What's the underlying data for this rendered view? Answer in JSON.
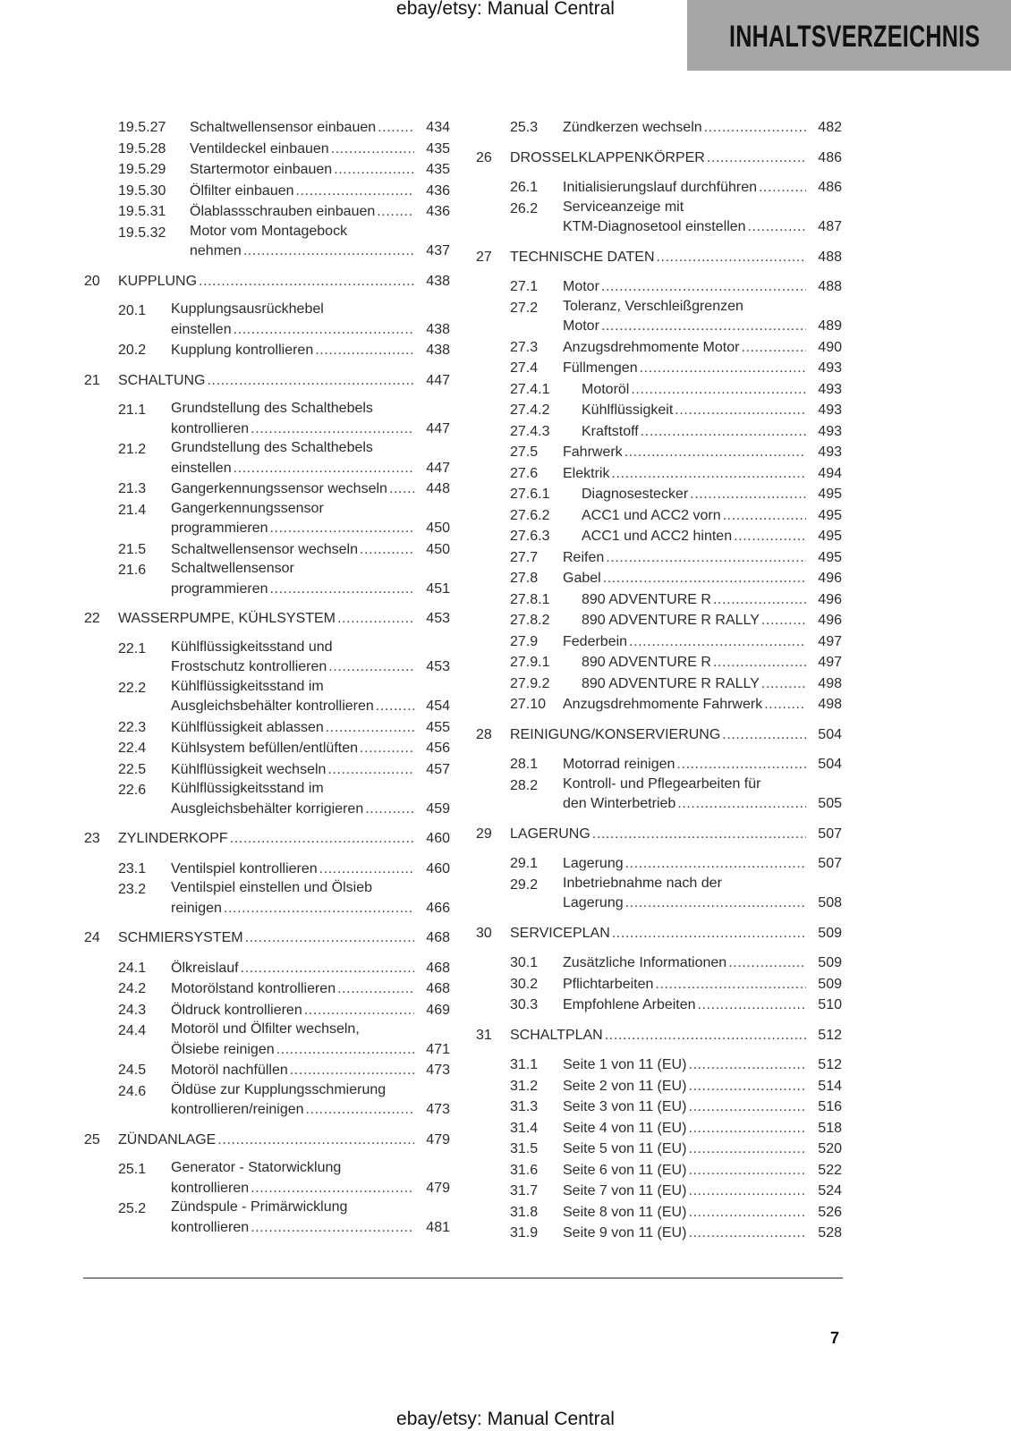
{
  "watermark_top": "ebay/etsy: Manual Central",
  "watermark_bottom": "ebay/etsy: Manual Central",
  "header": {
    "title": "INHALTSVERZEICHNIS",
    "box_color": "#a6a6a6"
  },
  "page_number": "7",
  "columns": [
    [
      {
        "num": "19.5.27",
        "level": 3,
        "lines": [
          "Schaltwellensensor einbauen"
        ],
        "page": "434"
      },
      {
        "num": "19.5.28",
        "level": 3,
        "lines": [
          "Ventildeckel einbauen"
        ],
        "page": "435"
      },
      {
        "num": "19.5.29",
        "level": 3,
        "lines": [
          "Startermotor einbauen"
        ],
        "page": "435"
      },
      {
        "num": "19.5.30",
        "level": 3,
        "lines": [
          "Ölfilter einbauen"
        ],
        "page": "436"
      },
      {
        "num": "19.5.31",
        "level": 3,
        "lines": [
          "Ölablassschrauben einbauen"
        ],
        "page": "436"
      },
      {
        "num": "19.5.32",
        "level": 3,
        "lines": [
          "Motor vom Montagebock",
          "nehmen"
        ],
        "page": "437"
      },
      {
        "num": "20",
        "level": 1,
        "lines": [
          "KUPPLUNG"
        ],
        "page": "438"
      },
      {
        "num": "20.1",
        "level": 2,
        "lines": [
          "Kupplungsausrückhebel",
          "einstellen"
        ],
        "page": "438"
      },
      {
        "num": "20.2",
        "level": 2,
        "lines": [
          "Kupplung kontrollieren"
        ],
        "page": "438"
      },
      {
        "num": "21",
        "level": 1,
        "lines": [
          "SCHALTUNG"
        ],
        "page": "447"
      },
      {
        "num": "21.1",
        "level": 2,
        "lines": [
          "Grundstellung des Schalthebels",
          "kontrollieren"
        ],
        "page": "447"
      },
      {
        "num": "21.2",
        "level": 2,
        "lines": [
          "Grundstellung des Schalthebels",
          "einstellen"
        ],
        "page": "447"
      },
      {
        "num": "21.3",
        "level": 2,
        "lines": [
          "Gangerkennungssensor wechseln"
        ],
        "page": "448"
      },
      {
        "num": "21.4",
        "level": 2,
        "lines": [
          "Gangerkennungssensor",
          "programmieren"
        ],
        "page": "450"
      },
      {
        "num": "21.5",
        "level": 2,
        "lines": [
          "Schaltwellensensor wechseln"
        ],
        "page": "450"
      },
      {
        "num": "21.6",
        "level": 2,
        "lines": [
          "Schaltwellensensor",
          "programmieren"
        ],
        "page": "451"
      },
      {
        "num": "22",
        "level": 1,
        "lines": [
          "WASSERPUMPE, KÜHLSYSTEM"
        ],
        "page": "453"
      },
      {
        "num": "22.1",
        "level": 2,
        "lines": [
          "Kühlflüssigkeitsstand und",
          "Frostschutz kontrollieren"
        ],
        "page": "453"
      },
      {
        "num": "22.2",
        "level": 2,
        "lines": [
          "Kühlflüssigkeitsstand im",
          "Ausgleichsbehälter kontrollieren"
        ],
        "page": "454"
      },
      {
        "num": "22.3",
        "level": 2,
        "lines": [
          "Kühlflüssigkeit ablassen"
        ],
        "page": "455"
      },
      {
        "num": "22.4",
        "level": 2,
        "lines": [
          "Kühlsystem befüllen/entlüften"
        ],
        "page": "456"
      },
      {
        "num": "22.5",
        "level": 2,
        "lines": [
          "Kühlflüssigkeit wechseln"
        ],
        "page": "457"
      },
      {
        "num": "22.6",
        "level": 2,
        "lines": [
          "Kühlflüssigkeitsstand im",
          "Ausgleichsbehälter korrigieren"
        ],
        "page": "459"
      },
      {
        "num": "23",
        "level": 1,
        "lines": [
          "ZYLINDERKOPF"
        ],
        "page": "460"
      },
      {
        "num": "23.1",
        "level": 2,
        "lines": [
          "Ventilspiel kontrollieren"
        ],
        "page": "460"
      },
      {
        "num": "23.2",
        "level": 2,
        "lines": [
          "Ventilspiel einstellen und Ölsieb",
          "reinigen"
        ],
        "page": "466"
      },
      {
        "num": "24",
        "level": 1,
        "lines": [
          "SCHMIERSYSTEM"
        ],
        "page": "468"
      },
      {
        "num": "24.1",
        "level": 2,
        "lines": [
          "Ölkreislauf"
        ],
        "page": "468"
      },
      {
        "num": "24.2",
        "level": 2,
        "lines": [
          "Motorölstand kontrollieren"
        ],
        "page": "468"
      },
      {
        "num": "24.3",
        "level": 2,
        "lines": [
          "Öldruck kontrollieren"
        ],
        "page": "469"
      },
      {
        "num": "24.4",
        "level": 2,
        "lines": [
          "Motoröl und Ölfilter wechseln,",
          "Ölsiebe reinigen"
        ],
        "page": "471"
      },
      {
        "num": "24.5",
        "level": 2,
        "lines": [
          "Motoröl nachfüllen"
        ],
        "page": "473"
      },
      {
        "num": "24.6",
        "level": 2,
        "lines": [
          "Öldüse zur Kupplungsschmierung",
          "kontrollieren/reinigen"
        ],
        "page": "473"
      },
      {
        "num": "25",
        "level": 1,
        "lines": [
          "ZÜNDANLAGE"
        ],
        "page": "479"
      },
      {
        "num": "25.1",
        "level": 2,
        "lines": [
          "Generator - Statorwicklung",
          "kontrollieren"
        ],
        "page": "479"
      },
      {
        "num": "25.2",
        "level": 2,
        "lines": [
          "Zündspule - Primärwicklung",
          "kontrollieren"
        ],
        "page": "481"
      }
    ],
    [
      {
        "num": "25.3",
        "level": 2,
        "lines": [
          "Zündkerzen wechseln"
        ],
        "page": "482"
      },
      {
        "num": "26",
        "level": 1,
        "lines": [
          "DROSSELKLAPPENKÖRPER"
        ],
        "page": "486"
      },
      {
        "num": "26.1",
        "level": 2,
        "lines": [
          "Initialisierungslauf durchführen"
        ],
        "page": "486"
      },
      {
        "num": "26.2",
        "level": 2,
        "lines": [
          "Serviceanzeige mit",
          "KTM-Diagnosetool einstellen"
        ],
        "page": "487"
      },
      {
        "num": "27",
        "level": 1,
        "lines": [
          "TECHNISCHE DATEN"
        ],
        "page": "488"
      },
      {
        "num": "27.1",
        "level": 2,
        "lines": [
          "Motor"
        ],
        "page": "488"
      },
      {
        "num": "27.2",
        "level": 2,
        "lines": [
          "Toleranz, Verschleißgrenzen",
          "Motor"
        ],
        "page": "489"
      },
      {
        "num": "27.3",
        "level": 2,
        "lines": [
          "Anzugsdrehmomente Motor"
        ],
        "page": "490"
      },
      {
        "num": "27.4",
        "level": 2,
        "lines": [
          "Füllmengen"
        ],
        "page": "493"
      },
      {
        "num": "27.4.1",
        "level": 3,
        "lines": [
          "Motoröl"
        ],
        "page": "493"
      },
      {
        "num": "27.4.2",
        "level": 3,
        "lines": [
          "Kühlflüssigkeit"
        ],
        "page": "493"
      },
      {
        "num": "27.4.3",
        "level": 3,
        "lines": [
          "Kraftstoff"
        ],
        "page": "493"
      },
      {
        "num": "27.5",
        "level": 2,
        "lines": [
          "Fahrwerk"
        ],
        "page": "493"
      },
      {
        "num": "27.6",
        "level": 2,
        "lines": [
          "Elektrik"
        ],
        "page": "494"
      },
      {
        "num": "27.6.1",
        "level": 3,
        "lines": [
          "Diagnosestecker"
        ],
        "page": "495"
      },
      {
        "num": "27.6.2",
        "level": 3,
        "lines": [
          "ACC1 und ACC2 vorn"
        ],
        "page": "495"
      },
      {
        "num": "27.6.3",
        "level": 3,
        "lines": [
          "ACC1 und ACC2 hinten"
        ],
        "page": "495"
      },
      {
        "num": "27.7",
        "level": 2,
        "lines": [
          "Reifen"
        ],
        "page": "495"
      },
      {
        "num": "27.8",
        "level": 2,
        "lines": [
          "Gabel"
        ],
        "page": "496"
      },
      {
        "num": "27.8.1",
        "level": 3,
        "lines": [
          "890 ADVENTURE R"
        ],
        "page": "496"
      },
      {
        "num": "27.8.2",
        "level": 3,
        "lines": [
          "890 ADVENTURE R RALLY"
        ],
        "page": "496"
      },
      {
        "num": "27.9",
        "level": 2,
        "lines": [
          "Federbein"
        ],
        "page": "497"
      },
      {
        "num": "27.9.1",
        "level": 3,
        "lines": [
          "890 ADVENTURE R"
        ],
        "page": "497"
      },
      {
        "num": "27.9.2",
        "level": 3,
        "lines": [
          "890 ADVENTURE R RALLY"
        ],
        "page": "498"
      },
      {
        "num": "27.10",
        "level": 2,
        "lines": [
          "Anzugsdrehmomente Fahrwerk"
        ],
        "page": "498"
      },
      {
        "num": "28",
        "level": 1,
        "lines": [
          "REINIGUNG/KONSERVIERUNG"
        ],
        "page": "504"
      },
      {
        "num": "28.1",
        "level": 2,
        "lines": [
          "Motorrad reinigen"
        ],
        "page": "504"
      },
      {
        "num": "28.2",
        "level": 2,
        "lines": [
          "Kontroll- und Pflegearbeiten für",
          "den Winterbetrieb"
        ],
        "page": "505"
      },
      {
        "num": "29",
        "level": 1,
        "lines": [
          "LAGERUNG"
        ],
        "page": "507"
      },
      {
        "num": "29.1",
        "level": 2,
        "lines": [
          "Lagerung"
        ],
        "page": "507"
      },
      {
        "num": "29.2",
        "level": 2,
        "lines": [
          "Inbetriebnahme nach der",
          "Lagerung"
        ],
        "page": "508"
      },
      {
        "num": "30",
        "level": 1,
        "lines": [
          "SERVICEPLAN"
        ],
        "page": "509"
      },
      {
        "num": "30.1",
        "level": 2,
        "lines": [
          "Zusätzliche Informationen"
        ],
        "page": "509"
      },
      {
        "num": "30.2",
        "level": 2,
        "lines": [
          "Pflichtarbeiten"
        ],
        "page": "509"
      },
      {
        "num": "30.3",
        "level": 2,
        "lines": [
          "Empfohlene Arbeiten"
        ],
        "page": "510"
      },
      {
        "num": "31",
        "level": 1,
        "lines": [
          "SCHALTPLAN"
        ],
        "page": "512"
      },
      {
        "num": "31.1",
        "level": 2,
        "lines": [
          "Seite 1 von 11 (EU)"
        ],
        "page": "512"
      },
      {
        "num": "31.2",
        "level": 2,
        "lines": [
          "Seite 2 von 11 (EU)"
        ],
        "page": "514"
      },
      {
        "num": "31.3",
        "level": 2,
        "lines": [
          "Seite 3 von 11 (EU)"
        ],
        "page": "516"
      },
      {
        "num": "31.4",
        "level": 2,
        "lines": [
          "Seite 4 von 11 (EU)"
        ],
        "page": "518"
      },
      {
        "num": "31.5",
        "level": 2,
        "lines": [
          "Seite 5 von 11 (EU)"
        ],
        "page": "520"
      },
      {
        "num": "31.6",
        "level": 2,
        "lines": [
          "Seite 6 von 11 (EU)"
        ],
        "page": "522"
      },
      {
        "num": "31.7",
        "level": 2,
        "lines": [
          "Seite 7 von 11 (EU)"
        ],
        "page": "524"
      },
      {
        "num": "31.8",
        "level": 2,
        "lines": [
          "Seite 8 von 11 (EU)"
        ],
        "page": "526"
      },
      {
        "num": "31.9",
        "level": 2,
        "lines": [
          "Seite 9 von 11 (EU)"
        ],
        "page": "528"
      }
    ]
  ]
}
